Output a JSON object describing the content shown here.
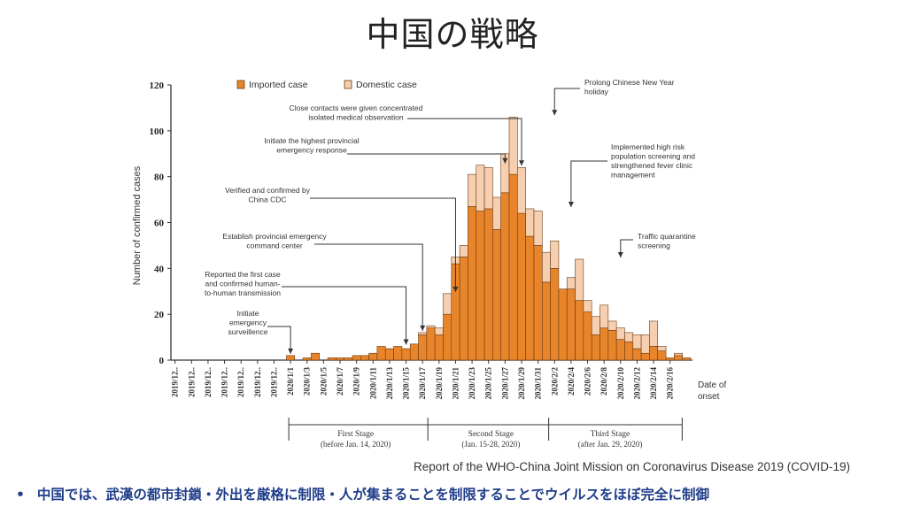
{
  "title": "中国の戦略",
  "source": "Report of the WHO-China Joint Mission on Coronavirus Disease 2019 (COVID-19)",
  "bullet": "中国では、武漢の都市封鎖・外出を厳格に制限・人が集まることを制限することでウイルスをほぼ完全に制御",
  "colors": {
    "imported": "#e8852a",
    "domestic": "#f6cfb0",
    "stroke": "#6a3a14"
  },
  "chart_data": {
    "type": "bar",
    "stacked": true,
    "ylabel": "Number of confirmed cases",
    "xlabel": "Date of onset",
    "ylim": [
      0,
      120
    ],
    "yticks": [
      0,
      20,
      40,
      60,
      80,
      100,
      120
    ],
    "legend": [
      "Imported case",
      "Domestic case"
    ],
    "tick_labels": [
      "2019/12..",
      "2019/12..",
      "2019/12..",
      "2019/12..",
      "2019/12..",
      "2019/12..",
      "2019/12..",
      "2020/1/1",
      "2020/1/3",
      "2020/1/5",
      "2020/1/7",
      "2020/1/9",
      "2020/1/11",
      "2020/1/13",
      "2020/1/15",
      "2020/1/17",
      "2020/1/19",
      "2020/1/21",
      "2020/1/23",
      "2020/1/25",
      "2020/1/27",
      "2020/1/29",
      "2020/1/31",
      "2020/2/2",
      "2020/2/4",
      "2020/2/6",
      "2020/2/8",
      "2020/2/10",
      "2020/2/12",
      "2020/2/14",
      "2020/2/16"
    ],
    "series": [
      {
        "name": "Imported case",
        "values": [
          0,
          0,
          0,
          0,
          0,
          0,
          0,
          0,
          0,
          0,
          0,
          0,
          0,
          0,
          2,
          0,
          1,
          3,
          0,
          1,
          1,
          1,
          2,
          2,
          3,
          6,
          5,
          6,
          5,
          7,
          11,
          14,
          11,
          20,
          42,
          45,
          67,
          65,
          66,
          57,
          73,
          81,
          64,
          54,
          50,
          34,
          40,
          31,
          31,
          26,
          21,
          11,
          14,
          13,
          9,
          8,
          5,
          3,
          6,
          4,
          1,
          2,
          1
        ]
      },
      {
        "name": "Domestic case",
        "values": [
          0,
          0,
          0,
          0,
          0,
          0,
          0,
          0,
          0,
          0,
          0,
          0,
          0,
          0,
          0,
          0,
          0,
          0,
          0,
          0,
          0,
          0,
          0,
          0,
          0,
          0,
          0,
          0,
          0,
          0,
          1,
          1,
          3,
          9,
          3,
          5,
          14,
          20,
          18,
          14,
          17,
          25,
          20,
          12,
          15,
          13,
          12,
          0,
          5,
          18,
          5,
          8,
          10,
          4,
          5,
          4,
          6,
          8,
          11,
          2,
          0,
          1,
          0
        ]
      }
    ],
    "stages": [
      {
        "name": "First Stage",
        "sub": "(before Jan. 14, 2020)"
      },
      {
        "name": "Second Stage",
        "sub": "(Jan. 15-28, 2020)"
      },
      {
        "name": "Third Stage",
        "sub": "(after Jan. 29, 2020)"
      }
    ],
    "annotations": [
      {
        "lines": [
          "Initiate",
          "emergency",
          "surveillence"
        ]
      },
      {
        "lines": [
          "Reported the first case",
          "and confirmed human-",
          "to-human transmission"
        ]
      },
      {
        "lines": [
          "Establish provincial emergency",
          "command center"
        ]
      },
      {
        "lines": [
          "Verified and confirmed by",
          "China CDC"
        ]
      },
      {
        "lines": [
          "Initiate the highest provincial",
          "emergency response"
        ]
      },
      {
        "lines": [
          "Close contacts were given concentrated",
          "isolated medical observation"
        ]
      },
      {
        "lines": [
          "Prolong Chinese New Year",
          "holiday"
        ]
      },
      {
        "lines": [
          "Implemented high risk",
          "population screening and",
          "strengthened fever clinic",
          "management"
        ]
      },
      {
        "lines": [
          "Traffic quarantine",
          "screening"
        ]
      }
    ]
  }
}
